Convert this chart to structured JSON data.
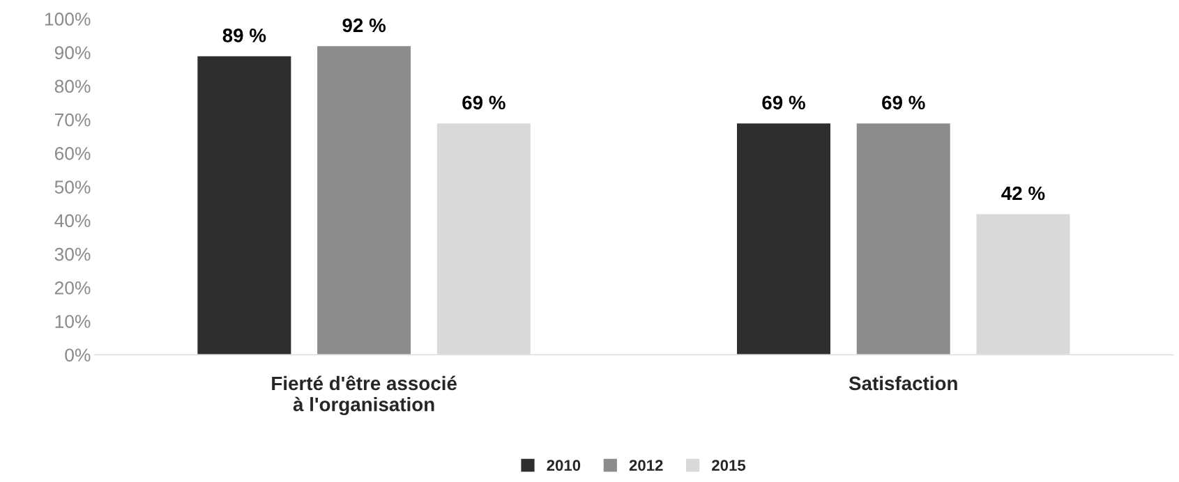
{
  "chart_data": {
    "type": "bar",
    "categories": [
      "Fierté d'être associé\nà l'organisation",
      "Satisfaction"
    ],
    "series": [
      {
        "name": "2010",
        "color": "#2e2e2e",
        "values": [
          89,
          69
        ]
      },
      {
        "name": "2012",
        "color": "#8c8c8c",
        "values": [
          92,
          69
        ]
      },
      {
        "name": "2015",
        "color": "#d9d9d9",
        "values": [
          69,
          42
        ]
      }
    ],
    "ylim": [
      0,
      100
    ],
    "yticks": [
      {
        "value": 0,
        "label": "0%"
      },
      {
        "value": 10,
        "label": "10%"
      },
      {
        "value": 20,
        "label": "20%"
      },
      {
        "value": 30,
        "label": "30%"
      },
      {
        "value": 40,
        "label": "40%"
      },
      {
        "value": 50,
        "label": "50%"
      },
      {
        "value": 60,
        "label": "60%"
      },
      {
        "value": 70,
        "label": "70%"
      },
      {
        "value": 80,
        "label": "80%"
      },
      {
        "value": 90,
        "label": "90%"
      },
      {
        "value": 100,
        "label": "100%"
      }
    ],
    "value_labels": [
      [
        "89 %",
        "69 %"
      ],
      [
        "92 %",
        "69 %"
      ],
      [
        "69 %",
        "42 %"
      ]
    ],
    "grid": false,
    "legend": "bottom"
  }
}
